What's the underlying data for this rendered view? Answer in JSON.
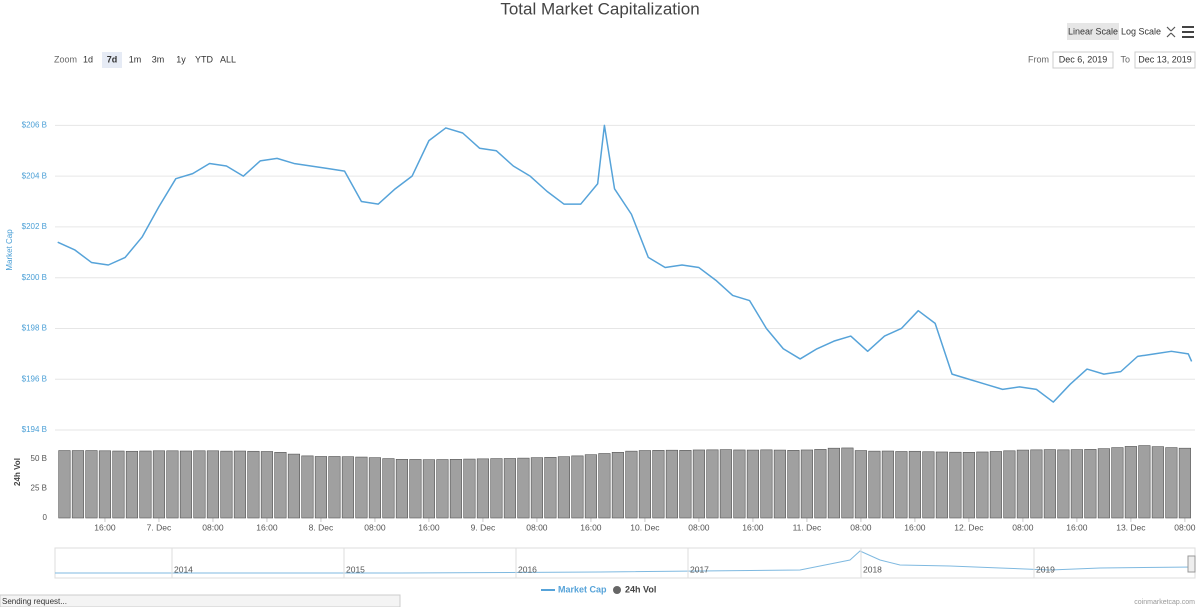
{
  "chart_data": [
    {
      "type": "line",
      "title": "Total Market Capitalization",
      "ylabel": "Market Cap",
      "x": [
        9,
        11.5,
        14,
        16.5,
        19,
        21.5,
        24,
        26.5,
        29,
        31.5,
        34,
        36.5,
        39,
        41.5,
        44,
        46.5,
        49,
        51.5,
        54,
        56.5,
        59,
        61.5,
        64,
        66.5,
        69,
        71.5,
        74,
        76.5,
        79,
        81.5,
        84,
        86.5,
        89,
        90,
        91.5,
        94,
        96.5,
        99,
        101.5,
        104,
        106.5,
        109,
        111.5,
        114,
        116.5,
        119,
        121.5,
        124,
        126.5,
        129,
        131.5,
        134,
        136.5,
        139,
        141.5,
        144,
        146.5,
        149,
        151.5,
        154,
        156.5,
        159,
        161.5,
        164,
        166.5,
        169,
        171.5,
        174,
        176.5,
        177
      ],
      "series": [
        {
          "name": "Market Cap",
          "color": "#56a3d9",
          "values": [
            201.4,
            201.1,
            200.6,
            200.5,
            200.8,
            201.6,
            202.8,
            203.9,
            204.1,
            204.5,
            204.4,
            204.0,
            204.6,
            204.7,
            204.5,
            204.4,
            204.3,
            204.2,
            203.0,
            202.9,
            203.5,
            204.0,
            205.4,
            205.9,
            205.7,
            205.1,
            205.0,
            204.4,
            204.0,
            203.4,
            202.9,
            202.9,
            203.7,
            206.0,
            203.5,
            202.5,
            200.8,
            200.4,
            200.5,
            200.4,
            199.9,
            199.3,
            199.1,
            198.0,
            197.2,
            196.8,
            197.2,
            197.5,
            197.7,
            197.1,
            197.7,
            198.0,
            198.7,
            198.2,
            196.2,
            196.0,
            195.8,
            195.6,
            195.7,
            195.6,
            195.1,
            195.8,
            196.4,
            196.2,
            196.3,
            196.9,
            197.0,
            197.1,
            197.0,
            196.7
          ]
        }
      ],
      "xlim": [
        8.6,
        177.5
      ],
      "ylim": [
        194,
        207
      ],
      "yticks": [
        {
          "value": 194,
          "label": "$194 B"
        },
        {
          "value": 196,
          "label": "$196 B"
        },
        {
          "value": 198,
          "label": "$198 B"
        },
        {
          "value": 200,
          "label": "$200 B"
        },
        {
          "value": 202,
          "label": "$202 B"
        },
        {
          "value": 204,
          "label": "$204 B"
        },
        {
          "value": 206,
          "label": "$206 B"
        }
      ],
      "grid": true
    },
    {
      "type": "bar",
      "ylabel": "24h Vol",
      "x": [
        10,
        12,
        14,
        16,
        18,
        20,
        22,
        24,
        26,
        28,
        30,
        32,
        34,
        36,
        38,
        40,
        42,
        44,
        46,
        48,
        50,
        52,
        54,
        56,
        58,
        60,
        62,
        64,
        66,
        68,
        70,
        72,
        74,
        76,
        78,
        80,
        82,
        84,
        86,
        88,
        90,
        92,
        94,
        96,
        98,
        100,
        102,
        104,
        106,
        108,
        110,
        112,
        114,
        116,
        118,
        120,
        122,
        124,
        126,
        128,
        130,
        132,
        134,
        136,
        138,
        140,
        142,
        144,
        146,
        148,
        150,
        152,
        154,
        156,
        158,
        160,
        162,
        164,
        166,
        168,
        170,
        172,
        174,
        176
      ],
      "series": [
        {
          "name": "24h Vol",
          "color": "#a0a0a0",
          "values": [
            57,
            57,
            57,
            56.8,
            56.6,
            56.4,
            56.6,
            56.8,
            56.8,
            56.6,
            56.8,
            56.8,
            56.5,
            56.6,
            56.4,
            56.2,
            55.5,
            54,
            52.5,
            52,
            52,
            51.8,
            51.5,
            51,
            50.2,
            49.6,
            49.5,
            49.3,
            49.4,
            49.6,
            49.8,
            50,
            50.2,
            50.3,
            50.6,
            51,
            51.3,
            51.8,
            52.5,
            53.5,
            54.5,
            55.5,
            56.5,
            57,
            57.2,
            57.3,
            57.2,
            57.5,
            57.6,
            57.8,
            57.5,
            57.4,
            57.6,
            57.4,
            57.2,
            57.5,
            58,
            59,
            59.2,
            57,
            56.5,
            56.6,
            56.2,
            56.4,
            56,
            55.8,
            55.6,
            55.5,
            55.8,
            56.2,
            56.8,
            57.4,
            57.6,
            57.8,
            57.6,
            57.8,
            58,
            58.6,
            59.5,
            60.5,
            61.2,
            60.3,
            59.5,
            59
          ]
        }
      ],
      "xlim": [
        8.6,
        177.5
      ],
      "ylim": [
        0,
        60
      ],
      "yticks": [
        0,
        {
          "value": 25,
          "label": "25 B"
        },
        {
          "value": 50,
          "label": "50 B"
        }
      ],
      "xticks": [
        {
          "value": 16,
          "label": "16:00"
        },
        {
          "value": 24,
          "label": "7. Dec"
        },
        {
          "value": 32,
          "label": "08:00"
        },
        {
          "value": 40,
          "label": "16:00"
        },
        {
          "value": 48,
          "label": "8. Dec"
        },
        {
          "value": 56,
          "label": "08:00"
        },
        {
          "value": 64,
          "label": "16:00"
        },
        {
          "value": 72,
          "label": "9. Dec"
        },
        {
          "value": 80,
          "label": "08:00"
        },
        {
          "value": 88,
          "label": "16:00"
        },
        {
          "value": 96,
          "label": "10. Dec"
        },
        {
          "value": 104,
          "label": "08:00"
        },
        {
          "value": 112,
          "label": "16:00"
        },
        {
          "value": 120,
          "label": "11. Dec"
        },
        {
          "value": 128,
          "label": "08:00"
        },
        {
          "value": 136,
          "label": "16:00"
        },
        {
          "value": 144,
          "label": "12. Dec"
        },
        {
          "value": 152,
          "label": "08:00"
        },
        {
          "value": 160,
          "label": "16:00"
        },
        {
          "value": 168,
          "label": "13. Dec"
        },
        {
          "value": 176,
          "label": "08:00"
        }
      ]
    }
  ],
  "ui": {
    "scale_buttons": [
      "Linear Scale",
      "Log Scale"
    ],
    "zoom_label": "Zoom",
    "zoom_buttons": [
      "1d",
      "7d",
      "1m",
      "3m",
      "1y",
      "YTD",
      "ALL"
    ],
    "from_label": "From",
    "from_date": "Dec 6, 2019",
    "to_label": "To",
    "to_date": "Dec 13, 2019",
    "navigator_years": [
      "2014",
      "2015",
      "2016",
      "2017",
      "2018",
      "2019"
    ],
    "credit": "coinmarketcap.com",
    "status": "Sending request..."
  }
}
